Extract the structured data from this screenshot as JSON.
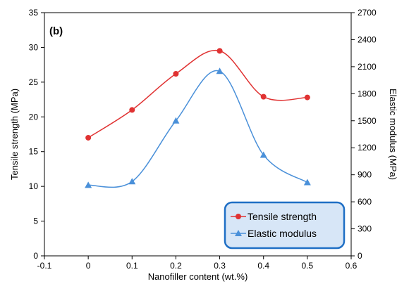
{
  "chart_data": {
    "type": "line",
    "panel_label": "(b)",
    "xlabel": "Nanofiller content (wt.%)",
    "ylabel_left": "Tensile strength (MPa)",
    "ylabel_right": "Elastic modulus (MPa)",
    "xlim": [
      -0.1,
      0.6
    ],
    "ylim_left": [
      0,
      35
    ],
    "ylim_right": [
      0,
      2700
    ],
    "x_ticks": [
      "-0.1",
      "0",
      "0.1",
      "0.2",
      "0.3",
      "0.4",
      "0.5",
      "0.6"
    ],
    "y_left_ticks": [
      "0",
      "5",
      "10",
      "15",
      "20",
      "25",
      "30",
      "35"
    ],
    "y_right_ticks": [
      "0",
      "300",
      "600",
      "900",
      "1200",
      "1500",
      "1800",
      "2100",
      "2400",
      "2700"
    ],
    "grid": false,
    "legend_position": "bottom-right",
    "series": [
      {
        "name": "Tensile strength",
        "axis": "left",
        "color": "#e03232",
        "marker": "circle",
        "smooth": true,
        "x": [
          0,
          0.1,
          0.2,
          0.3,
          0.4,
          0.5
        ],
        "y": [
          17.0,
          21.0,
          26.2,
          29.5,
          22.9,
          22.8
        ]
      },
      {
        "name": "Elastic modulus",
        "axis": "right",
        "color": "#4a90d9",
        "marker": "triangle",
        "smooth": true,
        "x": [
          0,
          0.1,
          0.2,
          0.3,
          0.4,
          0.5
        ],
        "y": [
          785,
          825,
          1500,
          2050,
          1120,
          815
        ]
      }
    ],
    "legend_style": {
      "border": "#1f6fc5",
      "background": "#d7e6f7"
    }
  }
}
